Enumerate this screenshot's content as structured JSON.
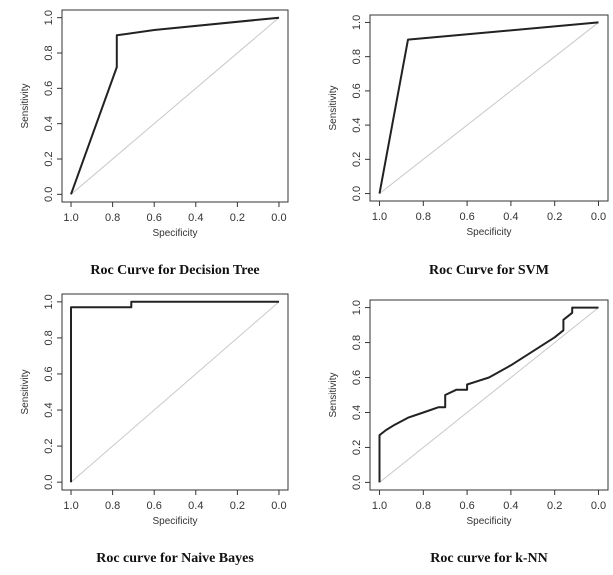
{
  "chart_data": [
    {
      "type": "line",
      "title": "Roc Curve for Decision Tree",
      "xlabel": "Specificity",
      "ylabel": "Sensitivity",
      "xlim": [
        1.0,
        0.0
      ],
      "ylim": [
        0.0,
        1.0
      ],
      "x_reversed": true,
      "x_ticks": [
        "1.0",
        "0.8",
        "0.6",
        "0.4",
        "0.2",
        "0.0"
      ],
      "y_ticks": [
        "0.0",
        "0.2",
        "0.4",
        "0.6",
        "0.8",
        "1.0"
      ],
      "diagonal_color": "#c8c8c8",
      "curve_color": "#222222",
      "series": [
        {
          "x": [
            1.0,
            0.78,
            0.78,
            0.6,
            0.0
          ],
          "y": [
            0.0,
            0.72,
            0.9,
            0.93,
            1.0
          ]
        }
      ]
    },
    {
      "type": "line",
      "title": "Roc Curve for SVM",
      "xlabel": "Specificity",
      "ylabel": "Sensitivity",
      "xlim": [
        1.0,
        0.0
      ],
      "ylim": [
        0.0,
        1.0
      ],
      "x_reversed": true,
      "x_ticks": [
        "1.0",
        "0.8",
        "0.6",
        "0.4",
        "0.2",
        "0.0"
      ],
      "y_ticks": [
        "0.0",
        "0.2",
        "0.4",
        "0.6",
        "0.8",
        "1.0"
      ],
      "diagonal_color": "#c8c8c8",
      "curve_color": "#222222",
      "series": [
        {
          "x": [
            1.0,
            0.87,
            0.0
          ],
          "y": [
            0.0,
            0.9,
            1.0
          ]
        }
      ]
    },
    {
      "type": "line",
      "title": "Roc curve for Naive Bayes",
      "xlabel": "Specificity",
      "ylabel": "Sensitivity",
      "xlim": [
        1.0,
        0.0
      ],
      "ylim": [
        0.0,
        1.0
      ],
      "x_reversed": true,
      "x_ticks": [
        "1.0",
        "0.8",
        "0.6",
        "0.4",
        "0.2",
        "0.0"
      ],
      "y_ticks": [
        "0.0",
        "0.2",
        "0.4",
        "0.6",
        "0.8",
        "1.0"
      ],
      "diagonal_color": "#c8c8c8",
      "curve_color": "#222222",
      "series": [
        {
          "x": [
            1.0,
            1.0,
            0.71,
            0.71,
            0.0
          ],
          "y": [
            0.0,
            0.97,
            0.97,
            1.0,
            1.0
          ]
        }
      ]
    },
    {
      "type": "line",
      "title": "Roc curve for k-NN",
      "xlabel": "Specificity",
      "ylabel": "Sensitivity",
      "xlim": [
        1.0,
        0.0
      ],
      "ylim": [
        0.0,
        1.0
      ],
      "x_reversed": true,
      "x_ticks": [
        "1.0",
        "0.8",
        "0.6",
        "0.4",
        "0.2",
        "0.0"
      ],
      "y_ticks": [
        "0.0",
        "0.2",
        "0.4",
        "0.6",
        "0.8",
        "1.0"
      ],
      "diagonal_color": "#c8c8c8",
      "curve_color": "#222222",
      "series": [
        {
          "x": [
            1.0,
            1.0,
            0.97,
            0.93,
            0.93,
            0.87,
            0.8,
            0.73,
            0.7,
            0.7,
            0.65,
            0.6,
            0.6,
            0.5,
            0.4,
            0.3,
            0.2,
            0.16,
            0.16,
            0.12,
            0.12,
            0.0
          ],
          "y": [
            0.0,
            0.27,
            0.3,
            0.33,
            0.33,
            0.37,
            0.4,
            0.43,
            0.43,
            0.5,
            0.53,
            0.53,
            0.56,
            0.6,
            0.67,
            0.75,
            0.83,
            0.87,
            0.93,
            0.97,
            1.0,
            1.0
          ]
        }
      ]
    }
  ]
}
